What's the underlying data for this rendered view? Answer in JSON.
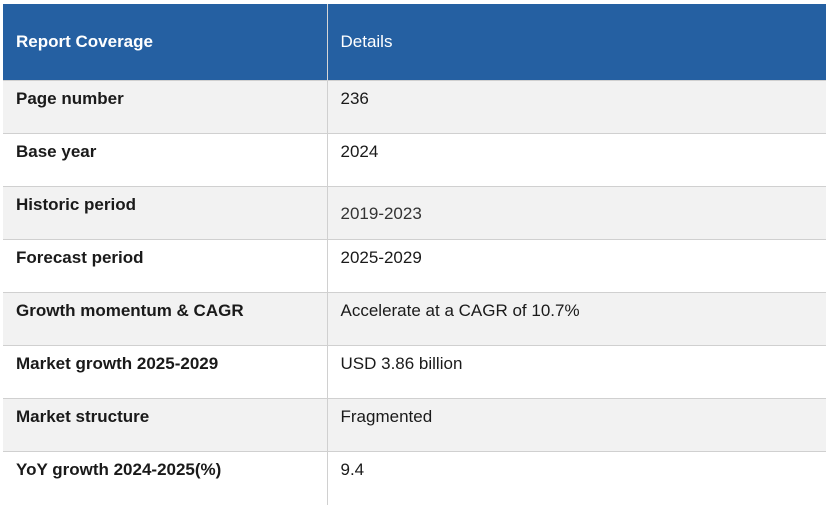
{
  "table": {
    "headers": [
      "Report Coverage",
      "Details"
    ],
    "rows": [
      {
        "label": "Page number",
        "value": "236"
      },
      {
        "label": "Base year",
        "value": "2024"
      },
      {
        "label": "Historic period",
        "value": "2019-2023"
      },
      {
        "label": "Forecast period",
        "value": "2025-2029"
      },
      {
        "label": "Growth momentum & CAGR",
        "value": "Accelerate at a CAGR of 10.7%"
      },
      {
        "label": "Market growth 2025-2029",
        "value": "USD 3.86 billion"
      },
      {
        "label": "Market structure",
        "value": "Fragmented"
      },
      {
        "label": "YoY growth 2024-2025(%)",
        "value": "9.4"
      }
    ]
  },
  "colors": {
    "header_bg": "#2560a2",
    "header_text": "#ffffff",
    "row_shade": "#f2f2f2",
    "row_plain": "#ffffff",
    "border": "#d0d0d0"
  }
}
